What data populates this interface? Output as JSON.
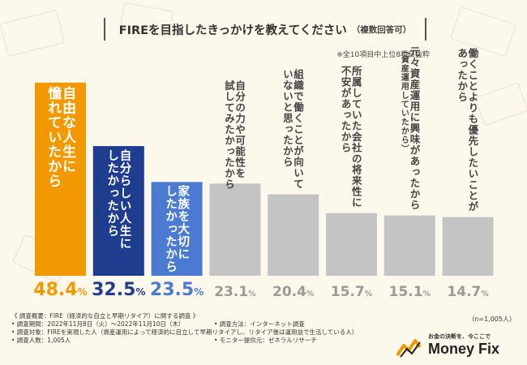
{
  "header": {
    "title": "FIREを目指したきっかけを教えてください",
    "subtitle": "（複数回答可）",
    "note": "※全10項目中上位8項目抜粋"
  },
  "chart_data": {
    "type": "bar",
    "categories": [
      "自由な人生に憧れていたから",
      "自分らしい人生にしたかったから",
      "家族を大切にしたかったから",
      "自分の力や可能性を試してみたかったから",
      "組織で働くことが向いていないと思ったから",
      "所属していた会社の将来性に不安があったから",
      "元々資産運用に興味があったから（資産運用していたから）",
      "働くことよりも優先したいことがあったから"
    ],
    "label_lines": [
      [
        "自由な人生に",
        "憧れていたから"
      ],
      [
        "自分らしい人生に",
        "したかったから"
      ],
      [
        "家族を大切に",
        "したかったから"
      ],
      [
        "自分の力や可能性を",
        "試してみたかったから"
      ],
      [
        "組織で働くことが向いて",
        "いないと思ったから"
      ],
      [
        "所属していた会社の将来性に",
        "不安があったから"
      ],
      [
        "元々資産運用に興味があったから",
        "（資産運用していたから）"
      ],
      [
        "働くことよりも優先したいことが",
        "あったから"
      ]
    ],
    "values": [
      48.4,
      32.5,
      23.5,
      23.1,
      20.4,
      15.7,
      15.1,
      14.7
    ],
    "value_labels": [
      "48.4",
      "32.5",
      "23.5",
      "23.1",
      "20.4",
      "15.7",
      "15.1",
      "14.7"
    ],
    "unit": "%",
    "colors": [
      "#f39800",
      "#1f3d8f",
      "#4a7bd0",
      "#c4c4c4",
      "#c4c4c4",
      "#c4c4c4",
      "#c4c4c4",
      "#c4c4c4"
    ],
    "value_colors": [
      "#f39800",
      "#1f3d8f",
      "#4a7bd0",
      "#9a9a9a",
      "#9a9a9a",
      "#9a9a9a",
      "#9a9a9a",
      "#9a9a9a"
    ],
    "ylim": [
      0,
      50
    ]
  },
  "footer": {
    "overview": "《 調査概要：FIRE（経済的な自立と早期リタイア）に関する調査 》",
    "period": "• 調査期間：2022年11月8日（火）〜2022年11月10日（木）",
    "method": "• 調査方法：インターネット調査",
    "target": "• 調査対象：FIREを実現した人（資産運用によって経済的に自立して早期リタイアし、リタイア後は運用益で生活している人）",
    "count": "• 調査人数：1,005人",
    "provider": "• モニター提供元：ゼネラルリサーチ",
    "n": "（n=1,005人）"
  },
  "logo": {
    "tagline": "お金の決断を、今ここで",
    "name": "Money Fix"
  }
}
